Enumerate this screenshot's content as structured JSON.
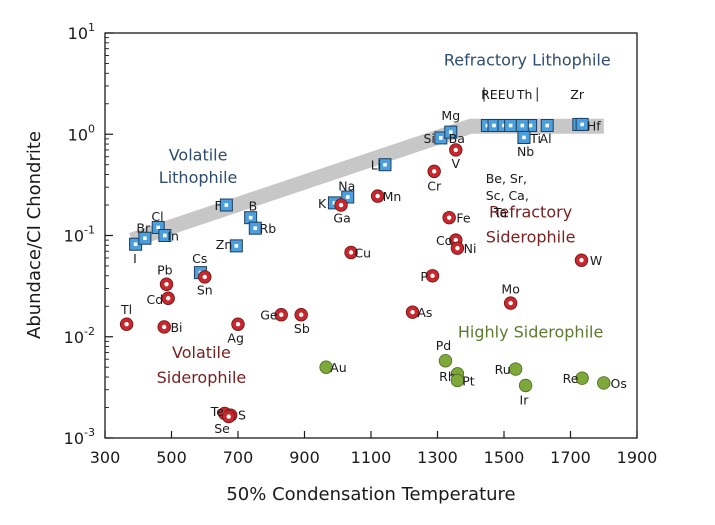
{
  "chart_data": {
    "type": "scatter",
    "xlabel": "50% Condensation Temperature",
    "ylabel": "Abundace/CI Chondrite",
    "xlim": [
      300,
      1900
    ],
    "ylim": [
      0.001,
      10
    ],
    "y_scale": "log",
    "x_ticks": [
      "300",
      "500",
      "700",
      "900",
      "1100",
      "1300",
      "1500",
      "1700",
      "1900"
    ],
    "y_ticks": [
      {
        "base": "10",
        "exp": "-3"
      },
      {
        "base": "10",
        "exp": "-2"
      },
      {
        "base": "10",
        "exp": "-1"
      },
      {
        "base": "10",
        "exp": "0"
      },
      {
        "base": "10",
        "exp": "1"
      }
    ],
    "colors": {
      "lithophile": "#4a9fdc",
      "siderophile": "#c8282d",
      "highly_siderophile": "#7ea83a",
      "lithophile_text": "#2d4c6e",
      "siderophile_text": "#7a1f1f",
      "highly_siderophile_text": "#5e7a2e",
      "trend_band": "#bdbdbd"
    },
    "trend_band": [
      [
        380,
        0.09
      ],
      [
        1400,
        1.2
      ],
      [
        1800,
        1.2
      ]
    ],
    "group_labels": [
      {
        "text": "Refractory Lithophile",
        "group": "lithophile",
        "x": 1570,
        "y": 4.8
      },
      {
        "text": "Volatile",
        "group": "lithophile",
        "x": 580,
        "y": 0.55
      },
      {
        "text": "Lithophile",
        "group": "lithophile",
        "x": 580,
        "y": 0.33
      },
      {
        "text": "Refractory",
        "group": "siderophile",
        "x": 1580,
        "y": 0.15
      },
      {
        "text": "Siderophile",
        "group": "siderophile",
        "x": 1580,
        "y": 0.085
      },
      {
        "text": "Volatile",
        "group": "siderophile",
        "x": 590,
        "y": 0.0062
      },
      {
        "text": "Siderophile",
        "group": "siderophile",
        "x": 590,
        "y": 0.0035
      },
      {
        "text": "Highly Siderophile",
        "group": "highly_siderophile",
        "x": 1580,
        "y": 0.0098
      }
    ],
    "series": [
      {
        "name": "Lithophile",
        "group": "lithophile",
        "marker": "square",
        "points": [
          {
            "el": "I",
            "x": 392,
            "y": 0.082,
            "lx": 390,
            "ly": 0.06
          },
          {
            "el": "Br",
            "x": 420,
            "y": 0.094,
            "lx": 415,
            "ly": 0.12
          },
          {
            "el": "Cl",
            "x": 460,
            "y": 0.12,
            "lx": 458,
            "ly": 0.155
          },
          {
            "el": "In",
            "x": 480,
            "y": 0.1,
            "lx": 505,
            "ly": 0.1
          },
          {
            "el": "F",
            "x": 665,
            "y": 0.2,
            "lx": 640,
            "ly": 0.2
          },
          {
            "el": "B",
            "x": 738,
            "y": 0.15,
            "lx": 745,
            "ly": 0.198
          },
          {
            "el": "Rb",
            "x": 752,
            "y": 0.118,
            "lx": 790,
            "ly": 0.118
          },
          {
            "el": "Zn",
            "x": 695,
            "y": 0.079,
            "lx": 658,
            "ly": 0.082
          },
          {
            "el": "Cs",
            "x": 587,
            "y": 0.043,
            "lx": 585,
            "ly": 0.06
          },
          {
            "el": "K",
            "x": 990,
            "y": 0.21,
            "lx": 953,
            "ly": 0.21
          },
          {
            "el": "Na",
            "x": 1030,
            "y": 0.24,
            "lx": 1027,
            "ly": 0.31
          },
          {
            "el": "Li",
            "x": 1142,
            "y": 0.5,
            "lx": 1115,
            "ly": 0.5
          },
          {
            "el": "Si",
            "x": 1310,
            "y": 0.92,
            "lx": 1275,
            "ly": 0.92
          },
          {
            "el": "Mg",
            "x": 1340,
            "y": 1.05,
            "lx": 1340,
            "ly": 1.55
          },
          {
            "el": "Ba",
            "x": 1450,
            "y": 1.22,
            "lx": 1358,
            "ly": 0.92
          },
          {
            "el": "REE",
            "x": 1470,
            "y": 1.22,
            "lx": 1468,
            "ly": 2.5
          },
          {
            "el": "U",
            "x": 1500,
            "y": 1.22,
            "lx": 1519,
            "ly": 2.5
          },
          {
            "el": "Th",
            "x": 1520,
            "y": 1.22,
            "lx": 1562,
            "ly": 2.5
          },
          {
            "el": "",
            "x": 1580,
            "y": 1.22
          },
          {
            "el": "",
            "x": 1630,
            "y": 1.22
          },
          {
            "el": "Ti",
            "x": 1555,
            "y": 1.22,
            "lx": 1595,
            "ly": 0.92
          },
          {
            "el": "Al",
            "x": 1560,
            "y": 0.93,
            "lx": 1625,
            "ly": 0.92
          },
          {
            "el": "Nb",
            "x": 1560,
            "y": 0.93,
            "lx": 1565,
            "ly": 0.68
          },
          {
            "el": "Zr",
            "x": 1725,
            "y": 1.25,
            "lx": 1720,
            "ly": 2.5
          },
          {
            "el": "Hf",
            "x": 1735,
            "y": 1.25,
            "lx": 1770,
            "ly": 1.22
          }
        ]
      },
      {
        "name": "Siderophile",
        "group": "siderophile",
        "marker": "circle",
        "points": [
          {
            "el": "Tl",
            "x": 365,
            "y": 0.0133,
            "lx": 365,
            "ly": 0.0187
          },
          {
            "el": "Pb",
            "x": 485,
            "y": 0.033,
            "lx": 480,
            "ly": 0.046
          },
          {
            "el": "Cd",
            "x": 490,
            "y": 0.024,
            "lx": 450,
            "ly": 0.0235
          },
          {
            "el": "Bi",
            "x": 478,
            "y": 0.0125,
            "lx": 515,
            "ly": 0.0125
          },
          {
            "el": "Sn",
            "x": 600,
            "y": 0.039,
            "lx": 600,
            "ly": 0.0293
          },
          {
            "el": "Ag",
            "x": 700,
            "y": 0.0133,
            "lx": 693,
            "ly": 0.0098
          },
          {
            "el": "Ge",
            "x": 830,
            "y": 0.0165,
            "lx": 793,
            "ly": 0.0165
          },
          {
            "el": "Sb",
            "x": 890,
            "y": 0.0165,
            "lx": 892,
            "ly": 0.0122
          },
          {
            "el": "Ga",
            "x": 1010,
            "y": 0.2,
            "lx": 1013,
            "ly": 0.15
          },
          {
            "el": "Mn",
            "x": 1120,
            "y": 0.245,
            "lx": 1163,
            "ly": 0.245
          },
          {
            "el": "Cu",
            "x": 1040,
            "y": 0.068,
            "lx": 1075,
            "ly": 0.068
          },
          {
            "el": "Cr",
            "x": 1290,
            "y": 0.43,
            "lx": 1290,
            "ly": 0.31
          },
          {
            "el": "V",
            "x": 1355,
            "y": 0.7,
            "lx": 1355,
            "ly": 0.52
          },
          {
            "el": "Fe",
            "x": 1335,
            "y": 0.15,
            "lx": 1378,
            "ly": 0.15
          },
          {
            "el": "Co",
            "x": 1355,
            "y": 0.09,
            "lx": 1320,
            "ly": 0.09
          },
          {
            "el": "Ni",
            "x": 1360,
            "y": 0.075,
            "lx": 1398,
            "ly": 0.075
          },
          {
            "el": "P",
            "x": 1285,
            "y": 0.04,
            "lx": 1260,
            "ly": 0.04
          },
          {
            "el": "As",
            "x": 1225,
            "y": 0.0175,
            "lx": 1262,
            "ly": 0.0175
          },
          {
            "el": "Mo",
            "x": 1520,
            "y": 0.0215,
            "lx": 1520,
            "ly": 0.0298
          },
          {
            "el": "W",
            "x": 1733,
            "y": 0.057,
            "lx": 1777,
            "ly": 0.057
          },
          {
            "el": "Te",
            "x": 660,
            "y": 0.00175,
            "lx": 638,
            "ly": 0.00185
          },
          {
            "el": "S",
            "x": 678,
            "y": 0.00168,
            "lx": 712,
            "ly": 0.0017
          },
          {
            "el": "Se",
            "x": 672,
            "y": 0.00163,
            "lx": 652,
            "ly": 0.00125
          }
        ]
      },
      {
        "name": "Highly Siderophile",
        "group": "highly_siderophile",
        "marker": "filled-circle",
        "points": [
          {
            "el": "Au",
            "x": 965,
            "y": 0.005,
            "lx": 1002,
            "ly": 0.005
          },
          {
            "el": "Pd",
            "x": 1324,
            "y": 0.0058,
            "lx": 1318,
            "ly": 0.0083
          },
          {
            "el": "Rh",
            "x": 1360,
            "y": 0.0043,
            "lx": 1330,
            "ly": 0.0041
          },
          {
            "el": "Pt",
            "x": 1360,
            "y": 0.0037,
            "lx": 1393,
            "ly": 0.0037
          },
          {
            "el": "Ru",
            "x": 1535,
            "y": 0.0048,
            "lx": 1496,
            "ly": 0.0048
          },
          {
            "el": "Ir",
            "x": 1565,
            "y": 0.0033,
            "lx": 1560,
            "ly": 0.0024
          },
          {
            "el": "Re",
            "x": 1735,
            "y": 0.0039,
            "lx": 1700,
            "ly": 0.0039
          },
          {
            "el": "Os",
            "x": 1800,
            "y": 0.0035,
            "lx": 1845,
            "ly": 0.0035
          }
        ]
      }
    ]
  }
}
